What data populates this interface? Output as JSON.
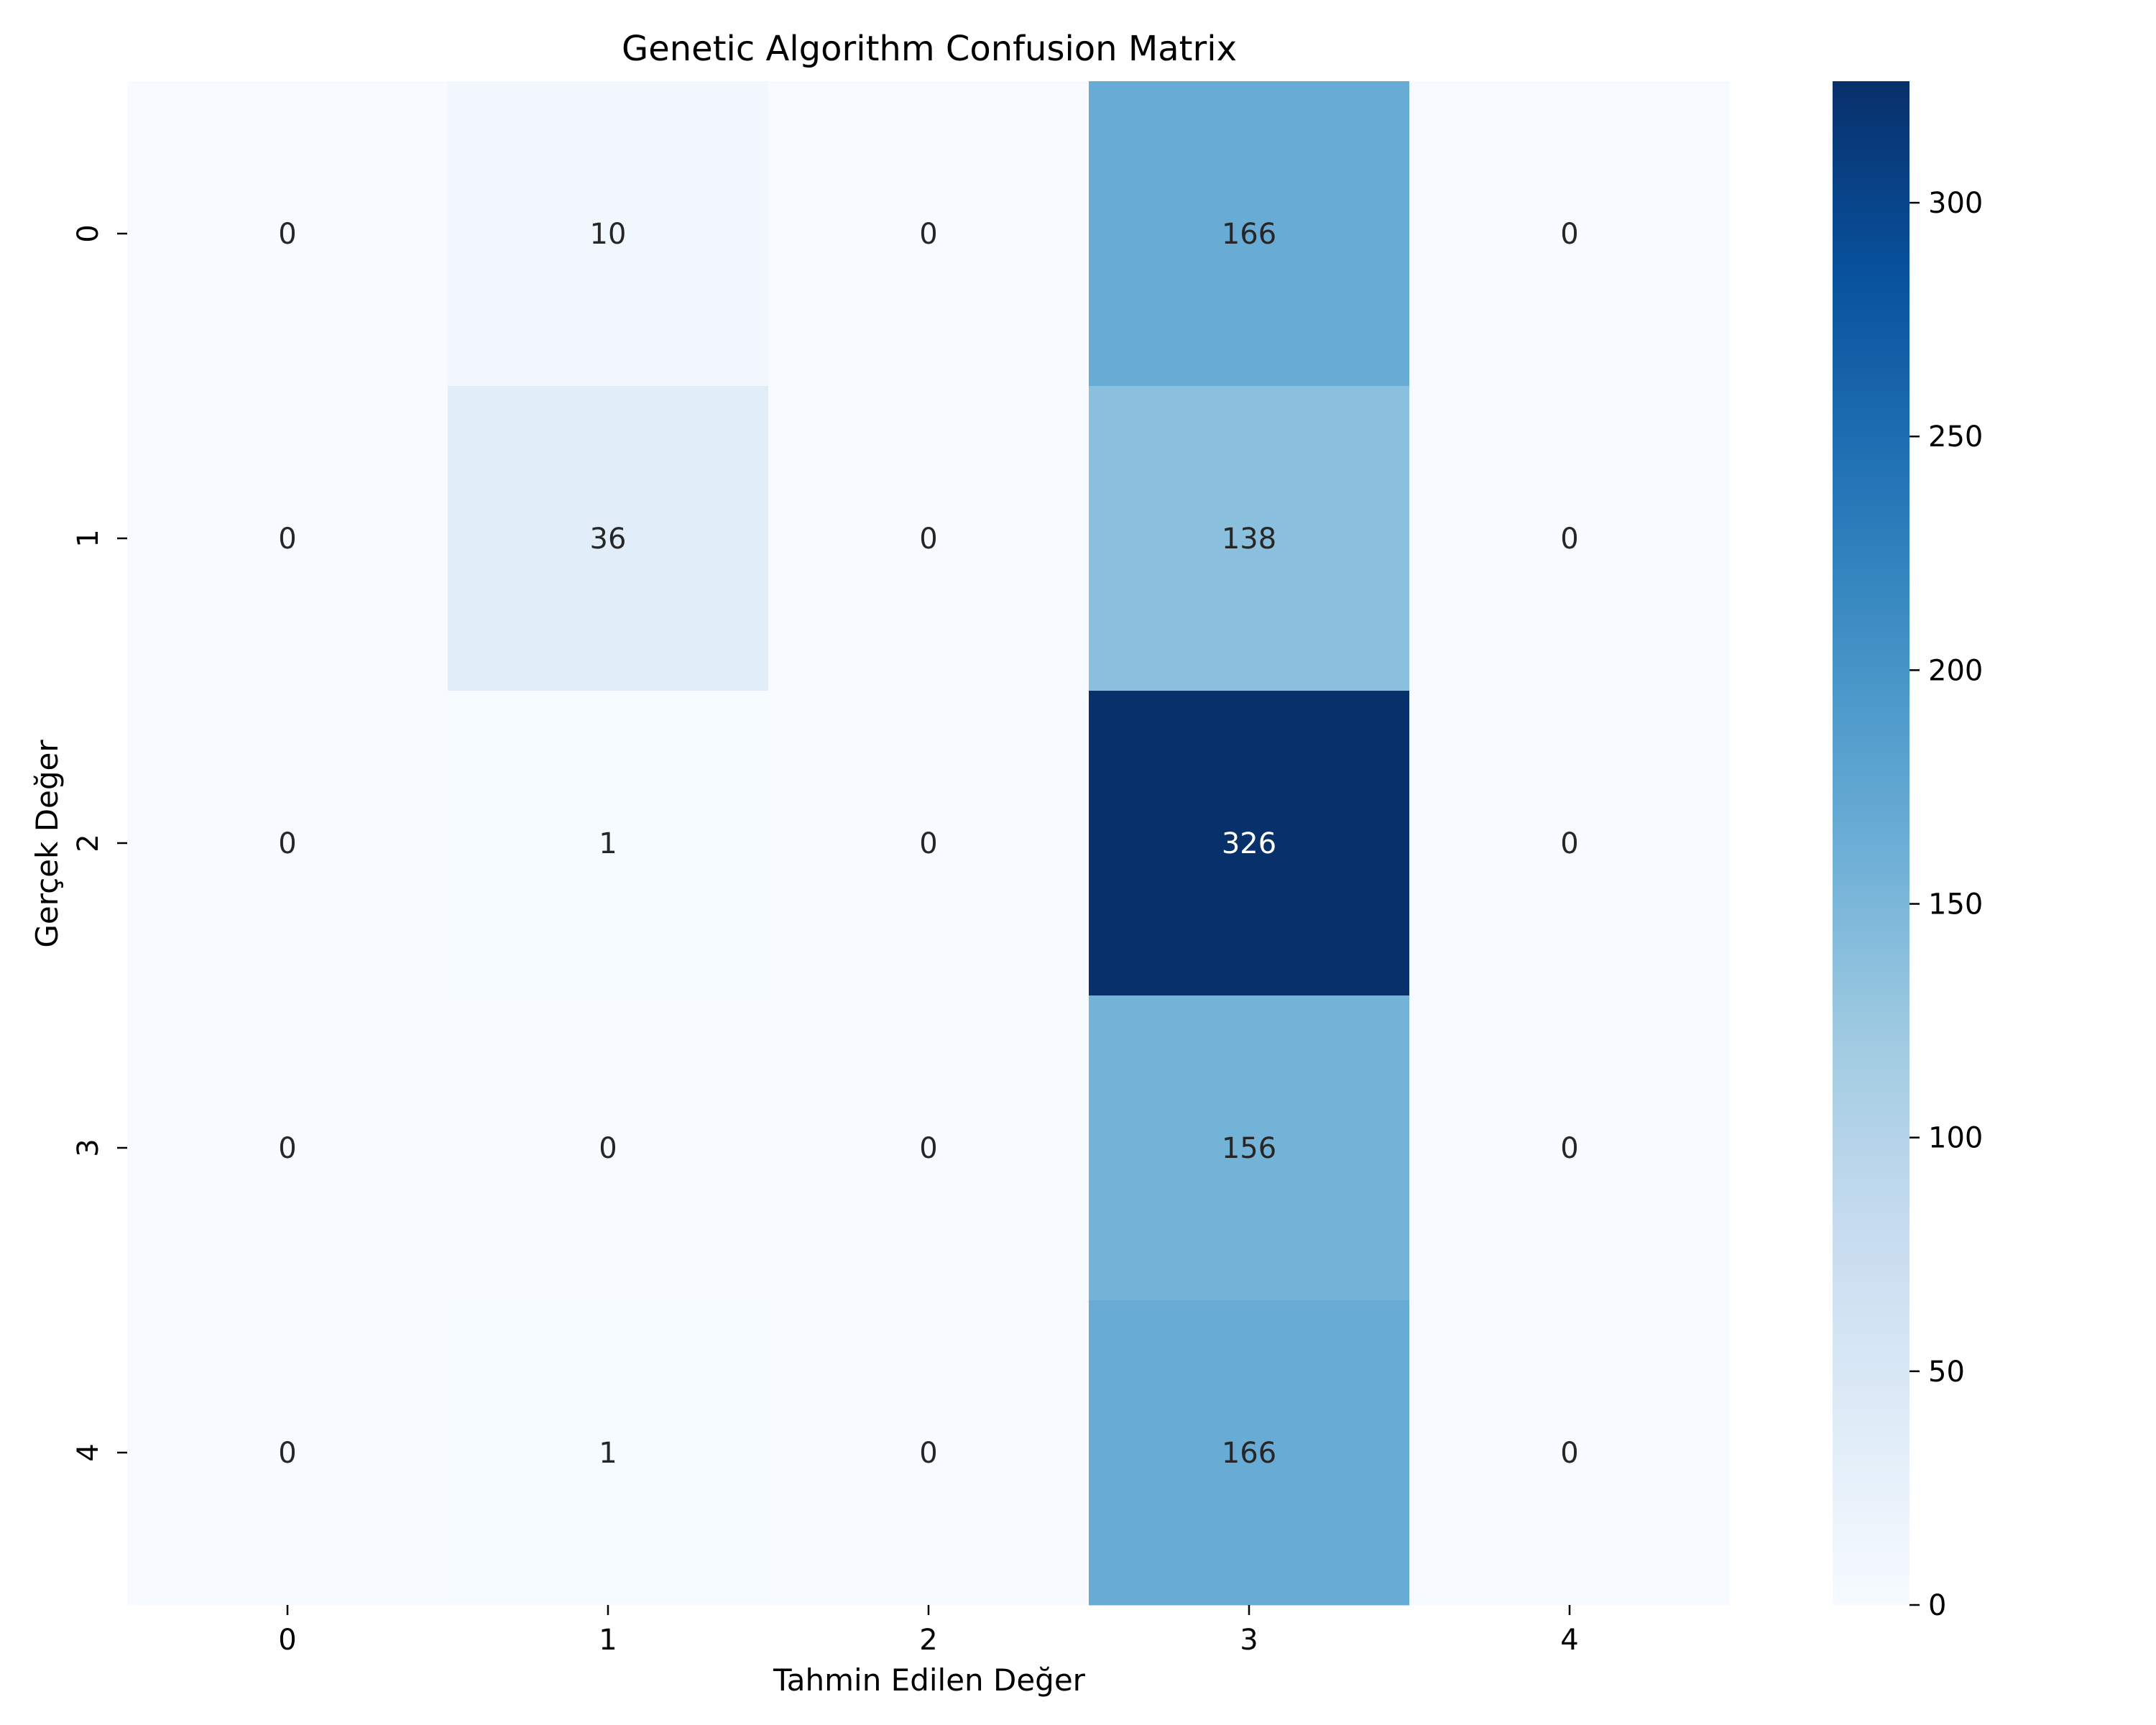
{
  "chart_data": {
    "type": "heatmap",
    "title": "Genetic Algorithm Confusion Matrix",
    "xlabel": "Tahmin Edilen Değer",
    "ylabel": "Gerçek Değer",
    "x_categories": [
      "0",
      "1",
      "2",
      "3",
      "4"
    ],
    "y_categories": [
      "0",
      "1",
      "2",
      "3",
      "4"
    ],
    "values": [
      [
        0,
        10,
        0,
        166,
        0
      ],
      [
        0,
        36,
        0,
        138,
        0
      ],
      [
        0,
        1,
        0,
        326,
        0
      ],
      [
        0,
        0,
        0,
        156,
        0
      ],
      [
        0,
        1,
        0,
        166,
        0
      ]
    ],
    "colormap": "Blues",
    "colorbar": {
      "min": 0,
      "max": 326,
      "ticks": [
        0,
        50,
        100,
        150,
        200,
        250,
        300
      ]
    }
  }
}
